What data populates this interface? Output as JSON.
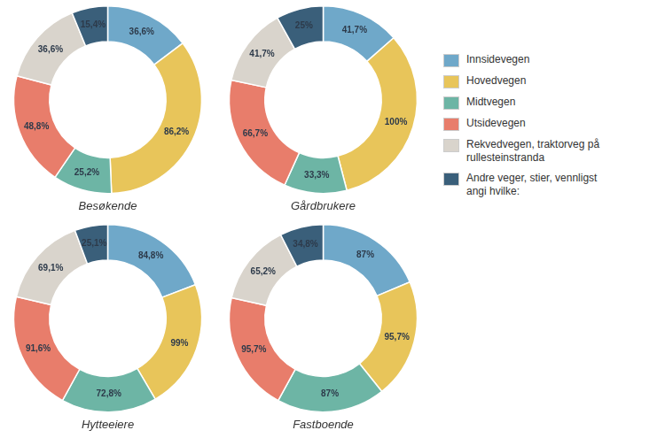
{
  "chart_data": [
    {
      "type": "doughnut",
      "title": "Besøkende",
      "categories": [
        "Innsidevegen",
        "Hovedvegen",
        "Midtvegen",
        "Utsidevegen",
        "Rekvedvegen, traktorveg på\nrullesteinstranda",
        "Andre veger, stier, vennligst\nangi hvilke:"
      ],
      "values": [
        36.6,
        86.2,
        25.2,
        48.8,
        36.6,
        15.4
      ],
      "value_labels": [
        "36,6%",
        "86,2%",
        "25,2%",
        "48,8%",
        "36,6%",
        "15,4%"
      ],
      "colors": [
        "#6fa8c9",
        "#e8c55a",
        "#6db5a5",
        "#e87d6b",
        "#d9d4cc",
        "#3a5f7a"
      ],
      "data_labels": true,
      "legend": "right"
    },
    {
      "type": "doughnut",
      "title": "Gårdbrukere",
      "categories": [
        "Innsidevegen",
        "Hovedvegen",
        "Midtvegen",
        "Utsidevegen",
        "Rekvedvegen, traktorveg på\nrullesteinstranda",
        "Andre veger, stier, vennligst\nangi hvilke:"
      ],
      "values": [
        41.7,
        100.0,
        33.3,
        66.7,
        41.7,
        25.0
      ],
      "value_labels": [
        "41,7%",
        "100%",
        "33,3%",
        "66,7%",
        "41,7%",
        "25%"
      ],
      "colors": [
        "#6fa8c9",
        "#e8c55a",
        "#6db5a5",
        "#e87d6b",
        "#d9d4cc",
        "#3a5f7a"
      ],
      "data_labels": true,
      "legend": "right"
    },
    {
      "type": "doughnut",
      "title": "Hytteeiere",
      "categories": [
        "Innsidevegen",
        "Hovedvegen",
        "Midtvegen",
        "Utsidevegen",
        "Rekvedvegen, traktorveg på\nrullesteinstranda",
        "Andre veger, stier, vennligst\nangi hvilke:"
      ],
      "values": [
        84.8,
        99.0,
        72.8,
        91.6,
        69.1,
        25.1
      ],
      "value_labels": [
        "84,8%",
        "99%",
        "72,8%",
        "91,6%",
        "69,1%",
        "25,1%"
      ],
      "colors": [
        "#6fa8c9",
        "#e8c55a",
        "#6db5a5",
        "#e87d6b",
        "#d9d4cc",
        "#3a5f7a"
      ],
      "data_labels": true,
      "legend": "right"
    },
    {
      "type": "doughnut",
      "title": "Fastboende",
      "categories": [
        "Innsidevegen",
        "Hovedvegen",
        "Midtvegen",
        "Utsidevegen",
        "Rekvedvegen, traktorveg på\nrullesteinstranda",
        "Andre veger, stier, vennligst\nangi hvilke:"
      ],
      "values": [
        87.0,
        95.7,
        87.0,
        95.7,
        65.2,
        34.8
      ],
      "value_labels": [
        "87%",
        "95,7%",
        "87%",
        "95,7%",
        "65,2%",
        "34,8%"
      ],
      "colors": [
        "#6fa8c9",
        "#e8c55a",
        "#6db5a5",
        "#e87d6b",
        "#d9d4cc",
        "#3a5f7a"
      ],
      "data_labels": true,
      "legend": "right"
    }
  ]
}
